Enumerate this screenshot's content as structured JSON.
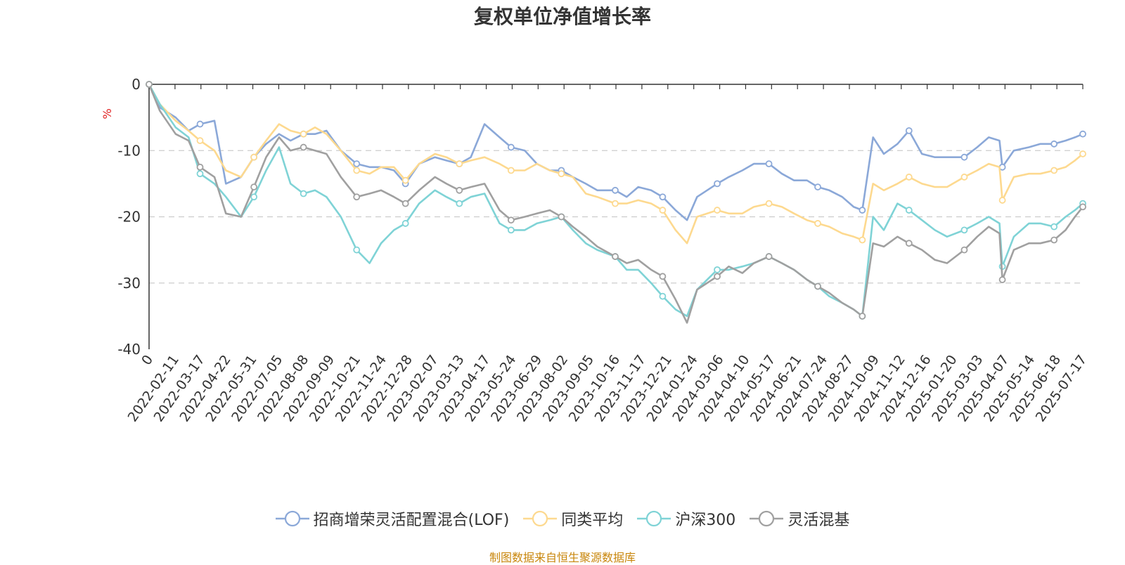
{
  "title": "复权单位净值增长率",
  "source_note": "制图数据来自恒生聚源数据库",
  "colors": {
    "source_note": "#c8860b",
    "ylabel": "#e02020",
    "grid": "#cccccc",
    "axis": "#333333"
  },
  "chart_data": {
    "type": "line",
    "title": "复权单位净值增长率",
    "xlabel": "",
    "ylabel": "%",
    "ylim": [
      -40,
      0
    ],
    "y_ticks": [
      0,
      -10,
      -20,
      -30,
      -40
    ],
    "grid": "horizontal dashed",
    "legend_position": "bottom",
    "x_tick_labels": [
      "0",
      "2022-02-11",
      "2022-03-17",
      "2022-04-22",
      "2022-05-31",
      "2022-07-05",
      "2022-08-08",
      "2022-09-09",
      "2022-10-21",
      "2022-11-24",
      "2022-12-28",
      "2023-02-07",
      "2023-03-13",
      "2023-04-17",
      "2023-05-24",
      "2023-06-29",
      "2023-08-02",
      "2023-09-05",
      "2023-10-16",
      "2023-11-17",
      "2023-12-21",
      "2024-01-24",
      "2024-03-06",
      "2024-04-10",
      "2024-05-17",
      "2024-06-21",
      "2024-07-24",
      "2024-08-27",
      "2024-10-09",
      "2024-11-12",
      "2024-12-16",
      "2025-01-20",
      "2025-03-03",
      "2025-04-07",
      "2025-05-14",
      "2025-06-18",
      "2025-07-17"
    ],
    "x": [
      "2022-01-05",
      "2022-01-20",
      "2022-02-11",
      "2022-03-01",
      "2022-03-17",
      "2022-04-06",
      "2022-04-22",
      "2022-05-13",
      "2022-05-31",
      "2022-06-17",
      "2022-07-05",
      "2022-07-21",
      "2022-08-08",
      "2022-08-24",
      "2022-09-09",
      "2022-09-29",
      "2022-10-21",
      "2022-11-08",
      "2022-11-24",
      "2022-12-12",
      "2022-12-28",
      "2023-01-16",
      "2023-02-07",
      "2023-02-23",
      "2023-03-13",
      "2023-03-29",
      "2023-04-17",
      "2023-05-08",
      "2023-05-24",
      "2023-06-12",
      "2023-06-29",
      "2023-07-17",
      "2023-08-02",
      "2023-08-18",
      "2023-09-05",
      "2023-09-21",
      "2023-10-16",
      "2023-11-01",
      "2023-11-17",
      "2023-12-05",
      "2023-12-21",
      "2024-01-08",
      "2024-01-24",
      "2024-02-07",
      "2024-03-06",
      "2024-03-22",
      "2024-04-10",
      "2024-04-26",
      "2024-05-17",
      "2024-06-04",
      "2024-06-21",
      "2024-07-09",
      "2024-07-24",
      "2024-08-09",
      "2024-08-27",
      "2024-09-12",
      "2024-09-24",
      "2024-10-09",
      "2024-10-24",
      "2024-11-12",
      "2024-11-28",
      "2024-12-16",
      "2025-01-03",
      "2025-01-20",
      "2025-02-13",
      "2025-03-03",
      "2025-03-19",
      "2025-04-03",
      "2025-04-07",
      "2025-04-23",
      "2025-05-14",
      "2025-05-30",
      "2025-06-18",
      "2025-07-04",
      "2025-07-17",
      "2025-07-28"
    ],
    "series": [
      {
        "name": "招商增荣灵活配置混合(LOF)",
        "color": "#8ba8d8",
        "values": [
          0,
          -3.5,
          -5,
          -7,
          -6,
          -5.5,
          -15,
          -14,
          -11,
          -9,
          -7.5,
          -8.5,
          -7.5,
          -7.5,
          -7,
          -10,
          -12,
          -12.5,
          -12.5,
          -13,
          -15,
          -12,
          -11,
          -11.5,
          -12,
          -11,
          -6,
          -8,
          -9.5,
          -10,
          -12,
          -13,
          -13,
          -14,
          -15,
          -16,
          -16,
          -17,
          -15.5,
          -16,
          -17,
          -19,
          -20.5,
          -17,
          -15,
          -14,
          -13,
          -12,
          -12,
          -13.5,
          -14.5,
          -14.5,
          -15.5,
          -16,
          -17,
          -18.5,
          -19,
          -8,
          -10.5,
          -9,
          -7,
          -10.5,
          -11,
          -11,
          -11,
          -9.5,
          -8,
          -8.5,
          -12.5,
          -10,
          -9.5,
          -9,
          -9,
          -8.5,
          -8,
          -7.5
        ]
      },
      {
        "name": "同类平均",
        "color": "#fdd98f",
        "values": [
          0,
          -3,
          -5.5,
          -7,
          -8.5,
          -10,
          -13,
          -14,
          -11,
          -8.5,
          -6,
          -7,
          -7.5,
          -6.5,
          -7.5,
          -10,
          -13,
          -13.5,
          -12.5,
          -12.5,
          -14.5,
          -12,
          -10.5,
          -11,
          -12,
          -11.5,
          -11,
          -12,
          -13,
          -13,
          -12,
          -13,
          -13.5,
          -14,
          -16.5,
          -17,
          -18,
          -18,
          -17.5,
          -18,
          -19,
          -22,
          -24,
          -20,
          -19,
          -19.5,
          -19.5,
          -18.5,
          -18,
          -18.5,
          -19.5,
          -20.5,
          -21,
          -21.5,
          -22.5,
          -23,
          -23.5,
          -15,
          -16,
          -15,
          -14,
          -15,
          -15.5,
          -15.5,
          -14,
          -13,
          -12,
          -12.5,
          -17.5,
          -14,
          -13.5,
          -13.5,
          -13,
          -12.5,
          -11.5,
          -10.5
        ]
      },
      {
        "name": "沪深300",
        "color": "#7fd3d6",
        "values": [
          0,
          -3,
          -6.5,
          -8,
          -13.5,
          -15,
          -17,
          -20,
          -17,
          -13,
          -9.5,
          -15,
          -16.5,
          -16,
          -17,
          -20,
          -25,
          -27,
          -24,
          -22,
          -21,
          -18,
          -16,
          -17,
          -18,
          -17,
          -16.5,
          -21,
          -22,
          -22,
          -21,
          -20.5,
          -20,
          -22,
          -24,
          -25,
          -26,
          -28,
          -28,
          -30,
          -32,
          -34,
          -35,
          -31,
          -28,
          -28,
          -27.5,
          -27,
          -26,
          -27,
          -28,
          -29.5,
          -30.5,
          -32,
          -33,
          -34,
          -35,
          -20,
          -22,
          -18,
          -19,
          -20.5,
          -22,
          -23,
          -22,
          -21,
          -20,
          -21,
          -27.5,
          -23,
          -21,
          -21,
          -21.5,
          -20,
          -19,
          -18
        ]
      },
      {
        "name": "灵活混基",
        "color": "#a0a0a0",
        "values": [
          0,
          -4,
          -7.5,
          -8.5,
          -12.5,
          -14,
          -19.5,
          -20,
          -15.5,
          -11,
          -8,
          -10,
          -9.5,
          -10,
          -10.5,
          -14,
          -17,
          -16.5,
          -16,
          -17,
          -18,
          -16,
          -14,
          -15,
          -16,
          -15.5,
          -15,
          -19,
          -20.5,
          -20,
          -19.5,
          -19,
          -20,
          -21.5,
          -23,
          -24.5,
          -26,
          -27,
          -26.5,
          -28,
          -29,
          -32.5,
          -36,
          -31,
          -29,
          -27.5,
          -28.5,
          -27,
          -26,
          -27,
          -28,
          -29.5,
          -30.5,
          -31.5,
          -33,
          -34,
          -35,
          -24,
          -24.5,
          -23,
          -24,
          -25,
          -26.5,
          -27,
          -25,
          -23,
          -21.5,
          -22.5,
          -29.5,
          -25,
          -24,
          -24,
          -23.5,
          -22,
          -20,
          -18.5
        ]
      }
    ]
  }
}
